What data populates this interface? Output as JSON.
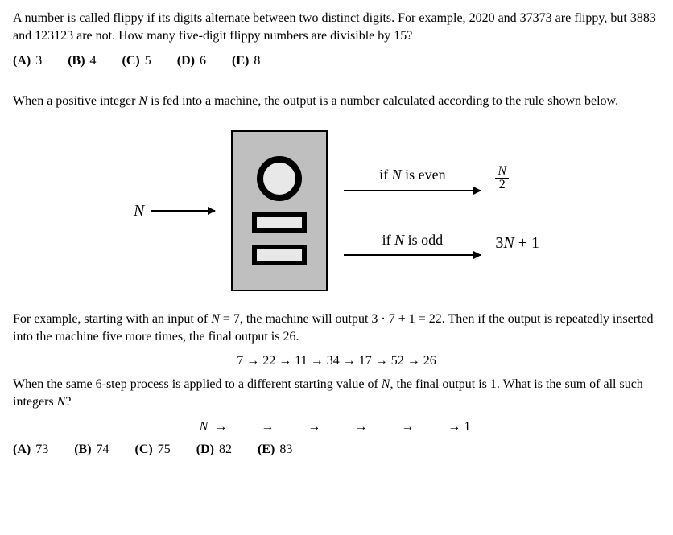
{
  "q1": {
    "text_pre": "A number is called flippy if its digits alternate between two distinct digits. For example, ",
    "ex1": "2020",
    "text_mid1": " and ",
    "ex2": "37373",
    "text_mid2": " are flippy, but ",
    "ex3": "3883",
    "text_mid3": " and ",
    "ex4": "123123",
    "text_mid4": " are not. How many five-digit flippy numbers are divisible by ",
    "divisor": "15",
    "text_end": "?",
    "choices": {
      "A": {
        "label": "(A)",
        "val": "3"
      },
      "B": {
        "label": "(B)",
        "val": "4"
      },
      "C": {
        "label": "(C)",
        "val": "5"
      },
      "D": {
        "label": "(D)",
        "val": "6"
      },
      "E": {
        "label": "(E)",
        "val": "8"
      }
    }
  },
  "q2": {
    "intro_pre": "When a positive integer ",
    "N": "N",
    "intro_post": " is fed into a machine, the output is a number calculated according to the rule shown below.",
    "diagram": {
      "input_label": "N",
      "even_label_pre": "if ",
      "even_label_mid": " is even",
      "even_expr_top": "N",
      "even_expr_bot": "2",
      "odd_label_pre": "if ",
      "odd_label_mid": " is odd",
      "odd_expr": "3N + 1",
      "machine_bg": "#bfbfbf",
      "machine_inner": "#e8e8e8"
    },
    "para2_pre": "For example, starting with an input of ",
    "eq1": "N = 7",
    "para2_mid1": ", the machine will output ",
    "eq2": "3 · 7 + 1 = 22",
    "para2_mid2": ". Then if the output is repeatedly inserted into the machine five more times, the final output is ",
    "twentysix": "26",
    "para2_end": ".",
    "chain": "7 → 22 → 11 → 34 → 17 → 52 → 26",
    "para3_pre": "When the same ",
    "six": "6",
    "para3_mid1": "-step process is applied to a different starting value of ",
    "para3_mid2": ", the final output is ",
    "one": "1",
    "para3_mid3": ". What is the sum of all such integers ",
    "para3_end": "?",
    "blank_chain_prefix": "N →",
    "blank_chain_final": "→ 1",
    "choices": {
      "A": {
        "label": "(A)",
        "val": "73"
      },
      "B": {
        "label": "(B)",
        "val": "74"
      },
      "C": {
        "label": "(C)",
        "val": "75"
      },
      "D": {
        "label": "(D)",
        "val": "82"
      },
      "E": {
        "label": "(E)",
        "val": "83"
      }
    }
  }
}
